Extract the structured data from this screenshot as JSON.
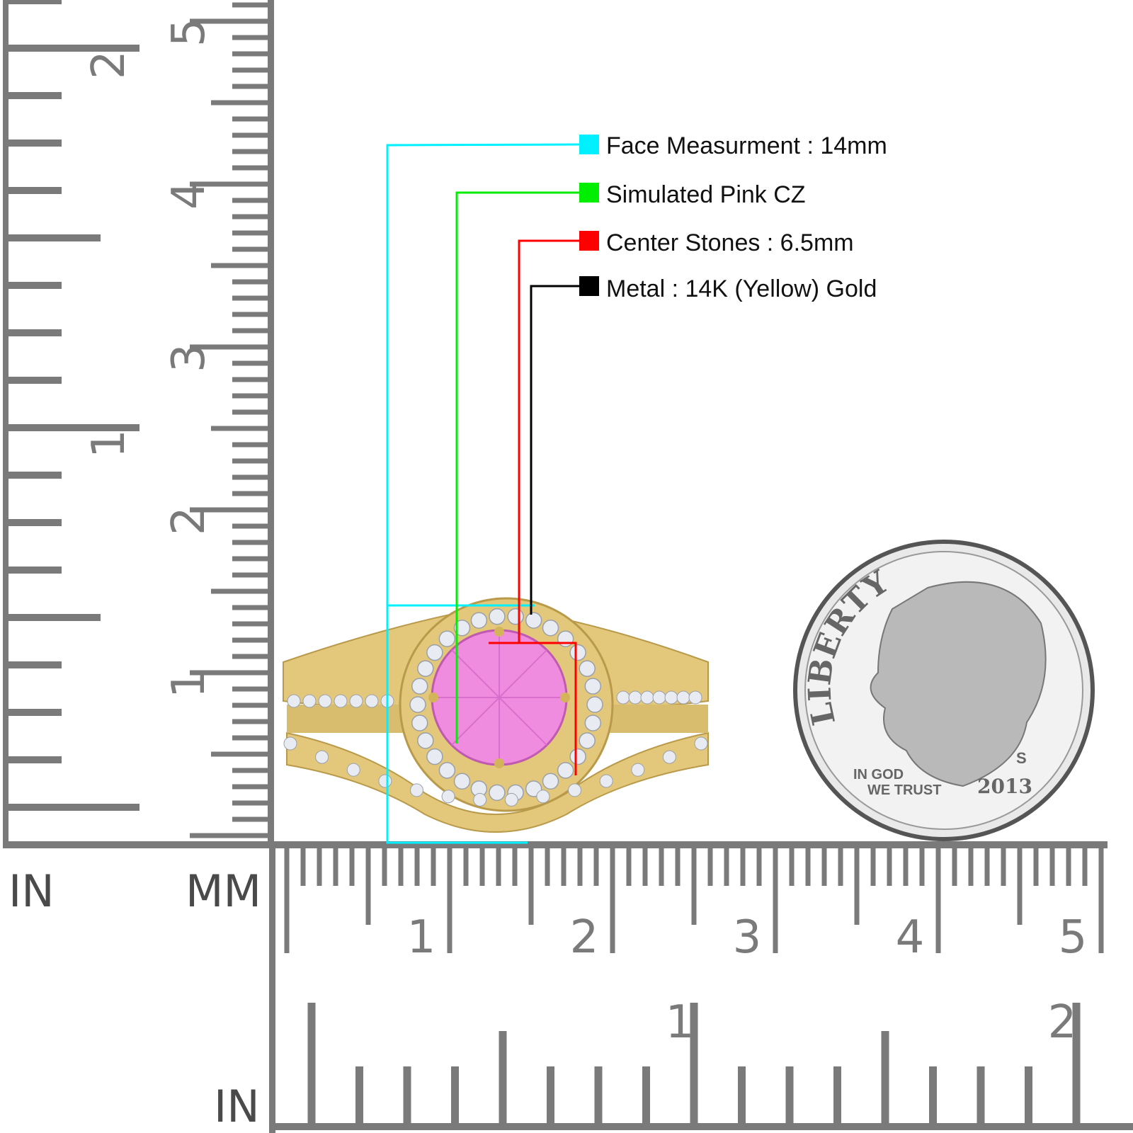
{
  "labels": [
    {
      "text": "Face Measurment : 14mm",
      "color": "#00f0ff"
    },
    {
      "text": "Simulated Pink CZ",
      "color": "#00ee00"
    },
    {
      "text": "Center Stones : 6.5mm",
      "color": "#ff0000"
    },
    {
      "text": "Metal : 14K (Yellow) Gold",
      "color": "#000000"
    }
  ],
  "rulers": {
    "units_in_left": "IN",
    "units_mm": "MM",
    "units_in_bottom": "IN",
    "vertical_cm_labels": [
      "1",
      "2",
      "3",
      "4",
      "5"
    ],
    "vertical_in_labels": [
      "1",
      "2"
    ],
    "horizontal_cm_labels": [
      "1",
      "2",
      "3",
      "4",
      "5"
    ],
    "horizontal_in_labels": [
      "1",
      "2"
    ],
    "color": "#7a7a7a"
  },
  "coin": {
    "top_text": "LIBERTY",
    "motto": "IN GOD WE TRUST",
    "year": "2013",
    "mint_mark": "S"
  },
  "product": {
    "metal_color": "#e3c77a",
    "stone_color": "#f08ce0"
  }
}
